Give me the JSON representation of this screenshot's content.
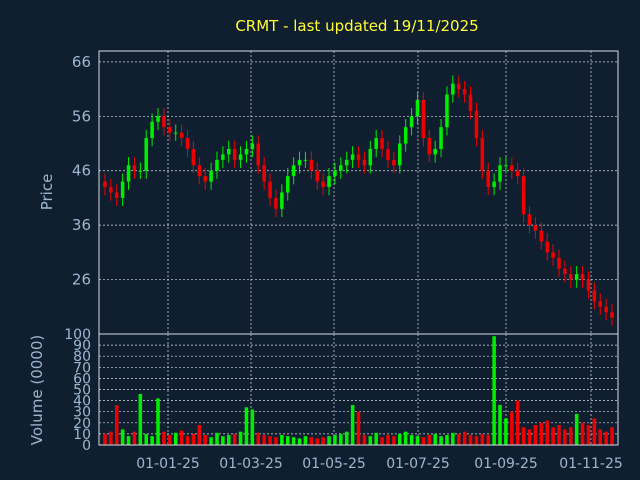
{
  "chart_data": {
    "type": "candlestick",
    "title": "CRMT - last updated 19/11/2025",
    "colors": {
      "background": "#0f1f30",
      "up": "#00ee00",
      "down": "#ee0000",
      "title": "#ffff33",
      "text": "#9fb6d0",
      "grid": "#d8dee6"
    },
    "price_panel": {
      "ylabel": "Price",
      "ylim": [
        16,
        68
      ],
      "yticks": [
        26,
        36,
        46,
        56,
        66
      ],
      "grid": true
    },
    "volume_panel": {
      "ylabel": "Volume (0000)",
      "ylim": [
        0,
        100
      ],
      "yticks": [
        0,
        10,
        20,
        30,
        40,
        50,
        60,
        70,
        80,
        90,
        100
      ],
      "grid": true
    },
    "x_axis": {
      "tick_labels": [
        "01-01-25",
        "01-03-25",
        "01-05-25",
        "01-07-25",
        "01-09-25",
        "01-11-25"
      ]
    },
    "series": [
      {
        "name": "close",
        "values": [
          43,
          42,
          41,
          44,
          47,
          46,
          46,
          52,
          55,
          56,
          54,
          53,
          53,
          52,
          50,
          47,
          45,
          44,
          46,
          48,
          49,
          50,
          48,
          49,
          50,
          51,
          47,
          44,
          41,
          39,
          42,
          45,
          47,
          48,
          48,
          46,
          44,
          43,
          45,
          46,
          47,
          48,
          49,
          48,
          47,
          50,
          52,
          50,
          48,
          47,
          51,
          54,
          56,
          59,
          52,
          49,
          50,
          54,
          60,
          62,
          61,
          60,
          57,
          52,
          46,
          43,
          44,
          47,
          47,
          46,
          45,
          38,
          36,
          35,
          33,
          31,
          30,
          28,
          27,
          26,
          27,
          26,
          24,
          22,
          21,
          20,
          19
        ]
      },
      {
        "name": "volume",
        "values": [
          10,
          12,
          36,
          14,
          8,
          12,
          46,
          10,
          8,
          42,
          12,
          9,
          11,
          13,
          8,
          10,
          18,
          9,
          7,
          11,
          8,
          9,
          10,
          12,
          34,
          32,
          11,
          9,
          8,
          7,
          9,
          8,
          7,
          6,
          8,
          7,
          6,
          7,
          8,
          9,
          10,
          12,
          36,
          30,
          9,
          8,
          11,
          7,
          9,
          8,
          10,
          12,
          9,
          8,
          7,
          9,
          10,
          8,
          9,
          11,
          10,
          12,
          9,
          8,
          10,
          9,
          98,
          36,
          24,
          30,
          40,
          16,
          14,
          18,
          20,
          22,
          16,
          18,
          14,
          16,
          28,
          20,
          18,
          24,
          14,
          12,
          16
        ]
      }
    ]
  }
}
